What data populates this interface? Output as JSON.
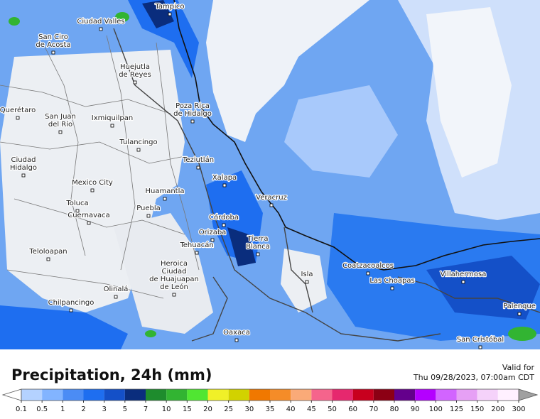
{
  "legend": {
    "title": "Precipitation, 24h (mm)",
    "valid_label": "Valid for",
    "valid_time": "Thu 09/28/2023, 07:00am CDT",
    "ticks": [
      0.1,
      0.5,
      1,
      2,
      3,
      5,
      7,
      10,
      15,
      20,
      25,
      30,
      35,
      40,
      45,
      50,
      60,
      70,
      80,
      90,
      100,
      125,
      150,
      200,
      300
    ],
    "colors": [
      "#b4d2ff",
      "#82b4ff",
      "#4b8cf5",
      "#1e6ef0",
      "#1450c8",
      "#0a2d7d",
      "#1e8c2d",
      "#32b432",
      "#50e632",
      "#f0f028",
      "#d2d200",
      "#f07800",
      "#f58c28",
      "#faaa78",
      "#f5648c",
      "#e6286e",
      "#c8001e",
      "#8c0014",
      "#64008c",
      "#b400ff",
      "#d264ff",
      "#e6a0f5",
      "#f5d2fa",
      "#fff0ff"
    ],
    "under_color": "#ffffff",
    "over_color": "#a0a0a0"
  },
  "cities": [
    {
      "lines": [
        "Tampico"
      ]
    },
    {
      "lines": [
        "Ciudad Valles"
      ]
    },
    {
      "lines": [
        "San Ciro",
        "de Acosta"
      ]
    },
    {
      "lines": [
        "Huejutla",
        "de Reyes"
      ]
    },
    {
      "lines": [
        "Poza Rica",
        "de Hidalgo"
      ]
    },
    {
      "lines": [
        "Querétaro"
      ]
    },
    {
      "lines": [
        "San Juan",
        "del Río"
      ]
    },
    {
      "lines": [
        "Ixmiquilpan"
      ]
    },
    {
      "lines": [
        "Tulancingo"
      ]
    },
    {
      "lines": [
        "Teziutlán"
      ]
    },
    {
      "lines": [
        "Ciudad",
        "Hidalgo"
      ]
    },
    {
      "lines": [
        "Xalapa"
      ]
    },
    {
      "lines": [
        "Mexico City"
      ]
    },
    {
      "lines": [
        "Huamantla"
      ]
    },
    {
      "lines": [
        "Toluca"
      ]
    },
    {
      "lines": [
        "Puebla"
      ]
    },
    {
      "lines": [
        "Veracruz"
      ]
    },
    {
      "lines": [
        "Cuernavaca"
      ]
    },
    {
      "lines": [
        "Córdoba"
      ]
    },
    {
      "lines": [
        "Orizaba"
      ]
    },
    {
      "lines": [
        "Tierra",
        "Blanca"
      ]
    },
    {
      "lines": [
        "Tehuacán"
      ]
    },
    {
      "lines": [
        "Teloloapan"
      ]
    },
    {
      "lines": [
        "Heroica",
        "Ciudad",
        "de Huajuapan",
        "de León"
      ]
    },
    {
      "lines": [
        "Isla"
      ]
    },
    {
      "lines": [
        "Coatzacoalcos"
      ]
    },
    {
      "lines": [
        "Las Choapas"
      ]
    },
    {
      "lines": [
        "Villahermosa"
      ]
    },
    {
      "lines": [
        "Olinalá"
      ]
    },
    {
      "lines": [
        "Chilpancingo"
      ]
    },
    {
      "lines": [
        "Palenque"
      ]
    },
    {
      "lines": [
        "Oaxaca"
      ]
    },
    {
      "lines": [
        "San Cristóbal"
      ]
    }
  ]
}
